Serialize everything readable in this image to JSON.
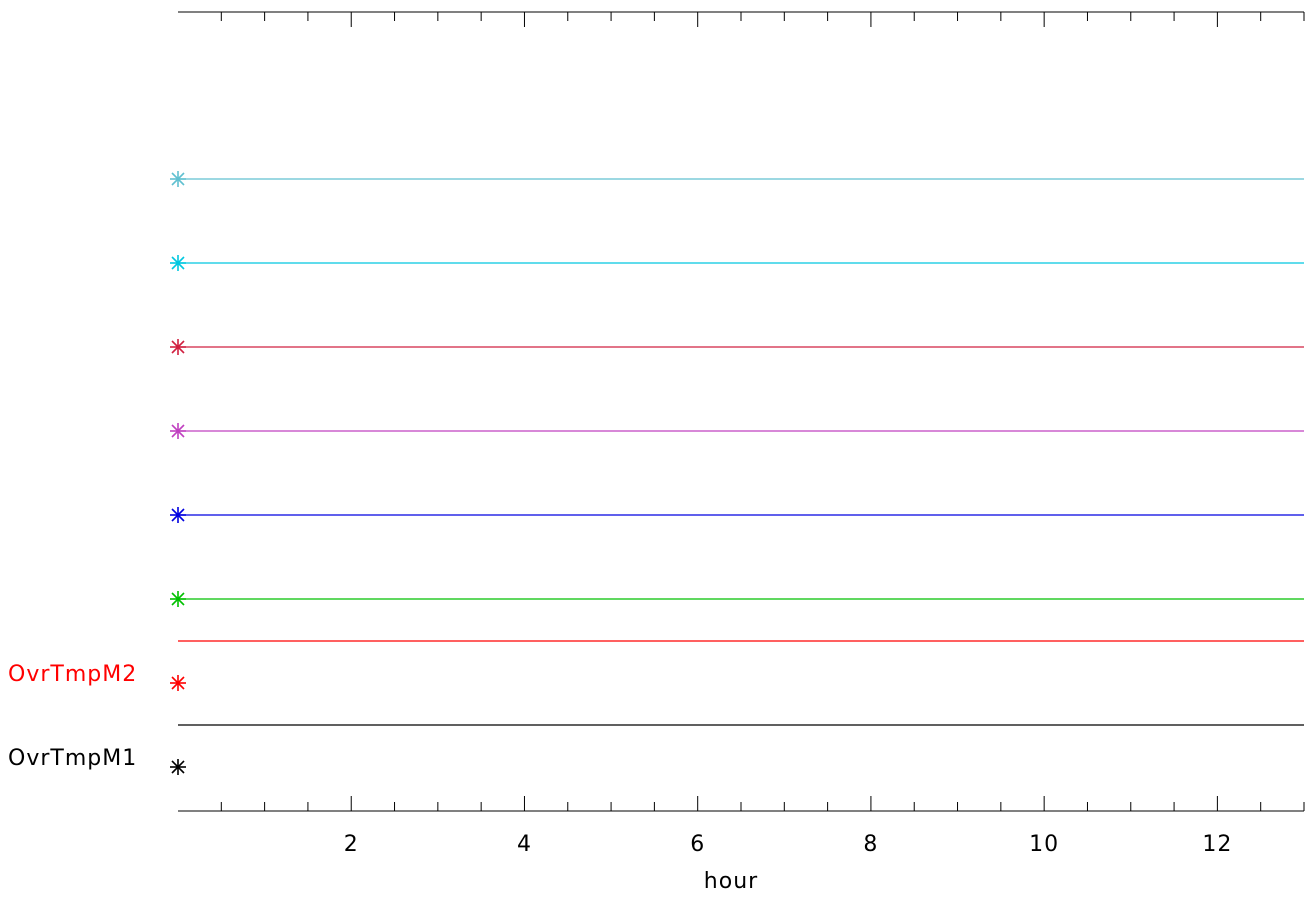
{
  "chart_data": {
    "type": "line",
    "xlabel": "hour",
    "ylabel": "",
    "title": "",
    "xlim": [
      0,
      13
    ],
    "x_ticks": [
      2,
      4,
      6,
      8,
      10,
      12
    ],
    "x_ticks_minor_step": 0.5,
    "top_title_fragments": [],
    "grid": false,
    "legend": "none",
    "series": [
      {
        "name": "OvrTmpM1",
        "color": "#000000",
        "x": [
          0
        ],
        "y": [
          0
        ]
      },
      {
        "name": "OvrTmpM2",
        "color": "#ff0000",
        "x": [
          0
        ],
        "y": [
          0
        ]
      },
      {
        "name": "",
        "color": "#00c000",
        "x": [
          0
        ],
        "y": [
          0
        ]
      },
      {
        "name": "",
        "color": "#0000e0",
        "x": [
          0
        ],
        "y": [
          0
        ]
      },
      {
        "name": "",
        "color": "#c040c0",
        "x": [
          0
        ],
        "y": [
          0
        ]
      },
      {
        "name": "",
        "color": "#d02040",
        "x": [
          0
        ],
        "y": [
          0
        ]
      },
      {
        "name": "",
        "color": "#00c8e0",
        "x": [
          0
        ],
        "y": [
          0
        ]
      },
      {
        "name": "",
        "color": "#60c0d0",
        "x": [
          0
        ],
        "y": [
          0
        ]
      }
    ]
  }
}
